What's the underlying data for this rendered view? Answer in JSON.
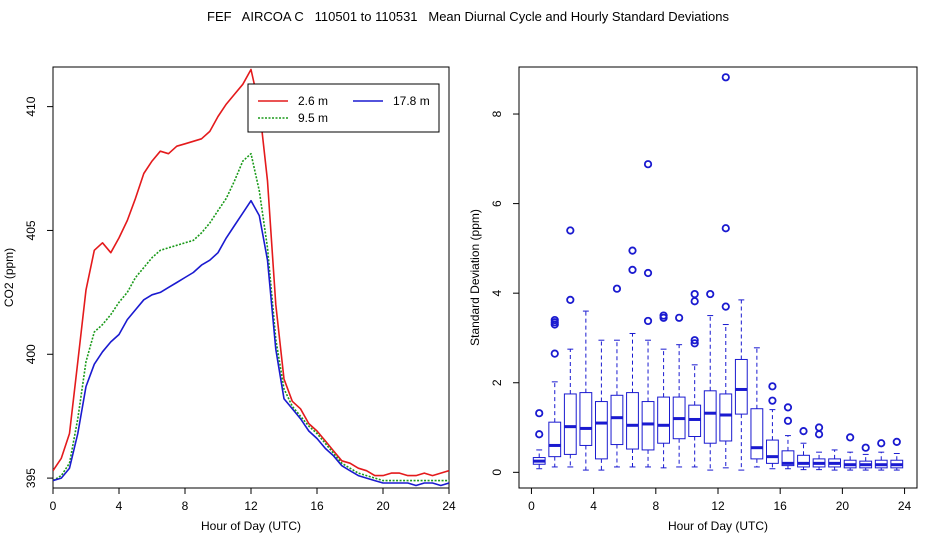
{
  "title": "FEF   AIRCOA C   110501 to 110531   Mean Diurnal Cycle and Hourly Standard Deviations",
  "chart_data": [
    {
      "type": "line",
      "title": "",
      "xlabel": "Hour of Day (UTC)",
      "ylabel": "CO2 (ppm)",
      "xlim": [
        0,
        24
      ],
      "ylim": [
        394.6,
        411.6
      ],
      "xticks": [
        0,
        4,
        8,
        12,
        16,
        20,
        24
      ],
      "yticks": [
        395,
        400,
        405,
        410
      ],
      "legend_position": "top-right",
      "series": [
        {
          "name": "2.6 m",
          "color": "#e41a1c",
          "style": "solid",
          "x": [
            0,
            0.5,
            1,
            1.5,
            2,
            2.5,
            3,
            3.5,
            4,
            4.5,
            5,
            5.5,
            6,
            6.5,
            7,
            7.5,
            8,
            8.5,
            9,
            9.5,
            10,
            10.5,
            11,
            11.5,
            12,
            12.5,
            13,
            13.5,
            14,
            14.5,
            15,
            15.5,
            16,
            16.5,
            17,
            17.5,
            18,
            18.5,
            19,
            19.5,
            20,
            20.5,
            21,
            21.5,
            22,
            22.5,
            23,
            23.5,
            24
          ],
          "y": [
            395.3,
            395.8,
            396.8,
            399.7,
            402.6,
            404.2,
            404.5,
            404.1,
            404.7,
            405.4,
            406.3,
            407.3,
            407.8,
            408.2,
            408.1,
            408.4,
            408.5,
            408.6,
            408.7,
            409.0,
            409.6,
            410.1,
            410.5,
            410.9,
            411.5,
            410.0,
            407.0,
            402.0,
            399.0,
            398.1,
            397.8,
            397.2,
            396.9,
            396.5,
            396.1,
            395.7,
            395.6,
            395.4,
            395.3,
            395.1,
            395.1,
            395.2,
            395.2,
            395.1,
            395.1,
            395.2,
            395.1,
            395.2,
            395.3
          ]
        },
        {
          "name": "9.5 m",
          "color": "#1a9a1a",
          "style": "dotted",
          "x": [
            0,
            0.5,
            1,
            1.5,
            2,
            2.5,
            3,
            3.5,
            4,
            4.5,
            5,
            5.5,
            6,
            6.5,
            7,
            7.5,
            8,
            8.5,
            9,
            9.5,
            10,
            10.5,
            11,
            11.5,
            12,
            12.5,
            13,
            13.5,
            14,
            14.5,
            15,
            15.5,
            16,
            16.5,
            17,
            17.5,
            18,
            18.5,
            19,
            19.5,
            20,
            20.5,
            21,
            21.5,
            22,
            22.5,
            23,
            23.5,
            24
          ],
          "y": [
            394.9,
            395.1,
            395.6,
            397.4,
            399.7,
            400.9,
            401.2,
            401.6,
            402.1,
            402.5,
            403.1,
            403.5,
            403.9,
            404.2,
            404.3,
            404.4,
            404.5,
            404.6,
            404.9,
            405.3,
            405.8,
            406.3,
            407.0,
            407.8,
            408.1,
            406.6,
            404.3,
            400.6,
            398.6,
            397.9,
            397.5,
            397.1,
            396.8,
            396.4,
            396.0,
            395.6,
            395.4,
            395.2,
            395.1,
            395.0,
            394.9,
            394.9,
            394.9,
            394.9,
            394.9,
            394.9,
            394.9,
            394.9,
            394.9
          ]
        },
        {
          "name": "17.8 m",
          "color": "#1a1ad0",
          "style": "solid",
          "x": [
            0,
            0.5,
            1,
            1.5,
            2,
            2.5,
            3,
            3.5,
            4,
            4.5,
            5,
            5.5,
            6,
            6.5,
            7,
            7.5,
            8,
            8.5,
            9,
            9.5,
            10,
            10.5,
            11,
            11.5,
            12,
            12.5,
            13,
            13.5,
            14,
            14.5,
            15,
            15.5,
            16,
            16.5,
            17,
            17.5,
            18,
            18.5,
            19,
            19.5,
            20,
            20.5,
            21,
            21.5,
            22,
            22.5,
            23,
            23.5,
            24
          ],
          "y": [
            394.9,
            395.0,
            395.4,
            396.8,
            398.7,
            399.6,
            400.1,
            400.5,
            400.8,
            401.4,
            401.8,
            402.2,
            402.4,
            402.5,
            402.7,
            402.9,
            403.1,
            403.3,
            403.6,
            403.8,
            404.1,
            404.7,
            405.2,
            405.7,
            406.2,
            405.6,
            403.8,
            400.2,
            398.2,
            397.8,
            397.4,
            396.9,
            396.6,
            396.2,
            395.9,
            395.5,
            395.3,
            395.1,
            395.0,
            394.9,
            394.8,
            394.8,
            394.8,
            394.8,
            394.7,
            394.8,
            394.8,
            394.7,
            394.8
          ]
        }
      ]
    },
    {
      "type": "boxplot",
      "title": "",
      "xlabel": "Hour of Day (UTC)",
      "ylabel": "Standard Deviation (ppm)",
      "xlim": [
        -0.8,
        24.8
      ],
      "ylim": [
        -0.35,
        9.05
      ],
      "xticks": [
        0,
        4,
        8,
        12,
        16,
        20,
        24
      ],
      "yticks": [
        0,
        2,
        4,
        6,
        8
      ],
      "color": "#1a1ad0",
      "boxes": [
        {
          "hour": 0.5,
          "lower": 0.08,
          "q1": 0.18,
          "median": 0.25,
          "q3": 0.33,
          "upper": 0.5,
          "outliers": [
            0.85,
            1.32
          ]
        },
        {
          "hour": 1.5,
          "lower": 0.12,
          "q1": 0.35,
          "median": 0.6,
          "q3": 1.12,
          "upper": 2.02,
          "outliers": [
            2.65,
            3.3,
            3.35,
            3.4
          ]
        },
        {
          "hour": 2.5,
          "lower": 0.12,
          "q1": 0.4,
          "median": 1.02,
          "q3": 1.75,
          "upper": 2.75,
          "outliers": [
            3.85,
            5.4
          ]
        },
        {
          "hour": 3.5,
          "lower": 0.05,
          "q1": 0.6,
          "median": 0.98,
          "q3": 1.78,
          "upper": 3.6,
          "outliers": []
        },
        {
          "hour": 4.5,
          "lower": 0.05,
          "q1": 0.3,
          "median": 1.1,
          "q3": 1.58,
          "upper": 2.95,
          "outliers": []
        },
        {
          "hour": 5.5,
          "lower": 0.12,
          "q1": 0.62,
          "median": 1.22,
          "q3": 1.72,
          "upper": 2.95,
          "outliers": [
            4.1
          ]
        },
        {
          "hour": 6.5,
          "lower": 0.12,
          "q1": 0.52,
          "median": 1.05,
          "q3": 1.78,
          "upper": 3.1,
          "outliers": [
            4.52,
            4.95
          ]
        },
        {
          "hour": 7.5,
          "lower": 0.12,
          "q1": 0.5,
          "median": 1.08,
          "q3": 1.58,
          "upper": 2.95,
          "outliers": [
            3.38,
            4.45,
            6.88
          ]
        },
        {
          "hour": 8.5,
          "lower": 0.1,
          "q1": 0.65,
          "median": 1.05,
          "q3": 1.68,
          "upper": 2.75,
          "outliers": [
            3.45,
            3.5
          ]
        },
        {
          "hour": 9.5,
          "lower": 0.12,
          "q1": 0.75,
          "median": 1.2,
          "q3": 1.68,
          "upper": 2.85,
          "outliers": [
            3.45
          ]
        },
        {
          "hour": 10.5,
          "lower": 0.12,
          "q1": 0.8,
          "median": 1.18,
          "q3": 1.5,
          "upper": 2.4,
          "outliers": [
            2.88,
            2.95,
            3.82,
            3.98
          ]
        },
        {
          "hour": 11.5,
          "lower": 0.05,
          "q1": 0.65,
          "median": 1.32,
          "q3": 1.82,
          "upper": 3.5,
          "outliers": [
            3.98
          ]
        },
        {
          "hour": 12.5,
          "lower": 0.1,
          "q1": 0.7,
          "median": 1.28,
          "q3": 1.75,
          "upper": 3.3,
          "outliers": [
            3.7,
            5.45,
            8.82
          ]
        },
        {
          "hour": 13.5,
          "lower": 0.05,
          "q1": 1.3,
          "median": 1.85,
          "q3": 2.52,
          "upper": 3.85,
          "outliers": []
        },
        {
          "hour": 14.5,
          "lower": 0.12,
          "q1": 0.3,
          "median": 0.55,
          "q3": 1.42,
          "upper": 2.78,
          "outliers": []
        },
        {
          "hour": 15.5,
          "lower": 0.08,
          "q1": 0.2,
          "median": 0.35,
          "q3": 0.72,
          "upper": 1.4,
          "outliers": [
            1.6,
            1.92
          ]
        },
        {
          "hour": 16.5,
          "lower": 0.08,
          "q1": 0.15,
          "median": 0.2,
          "q3": 0.48,
          "upper": 0.82,
          "outliers": [
            1.15,
            1.45
          ]
        },
        {
          "hour": 17.5,
          "lower": 0.06,
          "q1": 0.12,
          "median": 0.2,
          "q3": 0.38,
          "upper": 0.65,
          "outliers": [
            0.92
          ]
        },
        {
          "hour": 18.5,
          "lower": 0.06,
          "q1": 0.12,
          "median": 0.2,
          "q3": 0.3,
          "upper": 0.45,
          "outliers": [
            0.85,
            1.0
          ]
        },
        {
          "hour": 19.5,
          "lower": 0.05,
          "q1": 0.12,
          "median": 0.2,
          "q3": 0.3,
          "upper": 0.5,
          "outliers": []
        },
        {
          "hour": 20.5,
          "lower": 0.05,
          "q1": 0.1,
          "median": 0.17,
          "q3": 0.27,
          "upper": 0.45,
          "outliers": [
            0.78
          ]
        },
        {
          "hour": 21.5,
          "lower": 0.05,
          "q1": 0.1,
          "median": 0.17,
          "q3": 0.25,
          "upper": 0.4,
          "outliers": [
            0.55
          ]
        },
        {
          "hour": 22.5,
          "lower": 0.05,
          "q1": 0.1,
          "median": 0.17,
          "q3": 0.27,
          "upper": 0.45,
          "outliers": [
            0.65
          ]
        },
        {
          "hour": 23.5,
          "lower": 0.05,
          "q1": 0.1,
          "median": 0.17,
          "q3": 0.27,
          "upper": 0.42,
          "outliers": [
            0.68
          ]
        }
      ]
    }
  ]
}
